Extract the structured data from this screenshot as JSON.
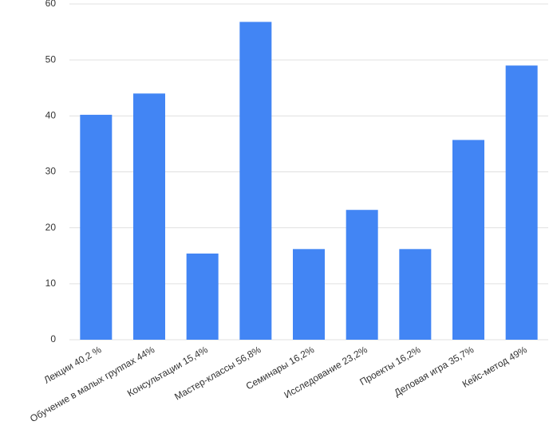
{
  "chart_data": {
    "type": "bar",
    "categories": [
      "Лекции 40,2 %",
      "Обучение в малых группах 44%",
      "Консультации 15,4%",
      "Мастер-классы 56,8%",
      "Семинары 16,2%",
      "Исследование 23,2%",
      "Проекты 16,2%",
      "Деловая игра 35,7%",
      "Кейс-метод 49%"
    ],
    "values": [
      40.2,
      44,
      15.4,
      56.8,
      16.2,
      23.2,
      16.2,
      35.7,
      49
    ],
    "color": "#4285f4",
    "ylim": [
      0,
      60
    ],
    "yticks": [
      0,
      10,
      20,
      30,
      40,
      50,
      60
    ],
    "grid": true
  }
}
